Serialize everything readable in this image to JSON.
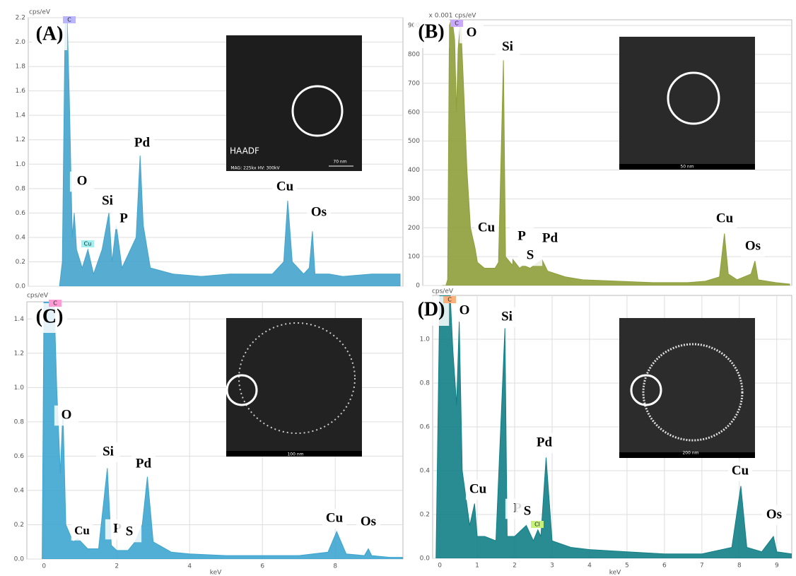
{
  "chart_data": [
    {
      "type": "line",
      "ylabel": "cps/eV",
      "color": "#44a4cc",
      "xlim": [
        -1.1,
        12.1
      ],
      "ylim": [
        0,
        2.2
      ],
      "yticks": [
        {
          "value": 0,
          "label": "0.0"
        },
        {
          "value": 0.2,
          "label": "0.2"
        },
        {
          "value": 0.4,
          "label": "0.4"
        },
        {
          "value": 0.6,
          "label": "0.6"
        },
        {
          "value": 0.8,
          "label": "0.8"
        },
        {
          "value": 1.0,
          "label": "1.0"
        },
        {
          "value": 1.2,
          "label": "1.2"
        },
        {
          "value": 1.4,
          "label": "1.4"
        },
        {
          "value": 1.6,
          "label": "1.6"
        },
        {
          "value": 1.8,
          "label": "1.8"
        },
        {
          "value": 2.0,
          "label": "2.0"
        },
        {
          "value": 2.2,
          "label": "2.2"
        }
      ],
      "x": [
        0,
        0.1,
        0.2,
        0.27,
        0.35,
        0.45,
        0.52,
        0.6,
        0.8,
        1.0,
        1.2,
        1.5,
        1.74,
        1.85,
        2.0,
        2.2,
        2.5,
        2.7,
        2.84,
        2.95,
        3.2,
        4,
        5,
        6,
        7.5,
        7.9,
        8.04,
        8.2,
        8.6,
        8.8,
        8.91,
        9.0,
        9.5,
        10,
        11,
        12
      ],
      "values": [
        0,
        0.2,
        2.2,
        2.2,
        1.5,
        0.4,
        0.6,
        0.3,
        0.15,
        0.3,
        0.1,
        0.3,
        0.6,
        0.2,
        0.5,
        0.15,
        0.3,
        0.4,
        1.07,
        0.5,
        0.15,
        0.1,
        0.08,
        0.1,
        0.1,
        0.2,
        0.7,
        0.2,
        0.1,
        0.15,
        0.45,
        0.1,
        0.1,
        0.08,
        0.1,
        0.1
      ],
      "annotations": [
        "(A)",
        "O",
        "Si",
        "P",
        "Pd",
        "Cu",
        "Os",
        "C",
        "Cu",
        "HAADF",
        "70 nm",
        "MAG: 225kx HV: 300kV"
      ]
    },
    {
      "type": "line",
      "ylabel": "x 0.001 cps/eV",
      "color": "#8f9e3a",
      "xlim": [
        -0.56,
        9.96
      ],
      "ylim": [
        0,
        920
      ],
      "yticks": [
        0,
        100,
        200,
        300,
        400,
        500,
        600,
        700,
        800,
        900
      ],
      "x": [
        0,
        0.1,
        0.15,
        0.2,
        0.25,
        0.28,
        0.35,
        0.4,
        0.45,
        0.52,
        0.6,
        0.7,
        0.8,
        0.93,
        1.0,
        1.2,
        1.5,
        1.6,
        1.74,
        1.8,
        2.0,
        2.01,
        2.2,
        2.31,
        2.5,
        2.84,
        3.0,
        3.5,
        4,
        5,
        6,
        7,
        7.5,
        7.9,
        8.04,
        8.15,
        8.4,
        8.8,
        8.91,
        9.0,
        9.5,
        9.9
      ],
      "values": [
        0,
        0,
        20,
        900,
        920,
        920,
        850,
        600,
        820,
        920,
        700,
        400,
        200,
        130,
        80,
        60,
        60,
        80,
        780,
        100,
        70,
        90,
        60,
        70,
        60,
        90,
        50,
        30,
        20,
        15,
        10,
        10,
        15,
        30,
        180,
        40,
        20,
        40,
        85,
        20,
        10,
        5
      ],
      "annotations": [
        "(B)",
        "O",
        "Si",
        "Cu",
        "P",
        "S",
        "Pd",
        "Cu",
        "Os",
        "C",
        "50 nm"
      ]
    },
    {
      "type": "line",
      "ylabel": "cps/eV",
      "xlabel": "keV",
      "color": "#3ea5cf",
      "xlim": [
        -0.47,
        9.86
      ],
      "ylim": [
        0,
        1.5
      ],
      "yticks": [
        {
          "value": 0,
          "label": "0.0"
        },
        {
          "value": 0.2,
          "label": "0.2"
        },
        {
          "value": 0.4,
          "label": "0.4"
        },
        {
          "value": 0.6,
          "label": "0.6"
        },
        {
          "value": 0.8,
          "label": "0.8"
        },
        {
          "value": 1.0,
          "label": "1.0"
        },
        {
          "value": 1.2,
          "label": "1.2"
        },
        {
          "value": 1.4,
          "label": "1.4"
        }
      ],
      "xticks": [
        0,
        2,
        4,
        6,
        8
      ],
      "x": [
        -0.05,
        0,
        0.1,
        0.2,
        0.28,
        0.35,
        0.45,
        0.52,
        0.6,
        0.8,
        0.93,
        1.2,
        1.5,
        1.74,
        1.85,
        2.0,
        2.31,
        2.5,
        2.7,
        2.84,
        3.0,
        3.5,
        4,
        5,
        6,
        7,
        7.8,
        8.04,
        8.3,
        8.8,
        8.91,
        9.0,
        9.5,
        9.86
      ],
      "values": [
        0,
        1.5,
        1.5,
        1.5,
        1.5,
        1.0,
        0.5,
        0.87,
        0.2,
        0.1,
        0.12,
        0.06,
        0.06,
        0.53,
        0.08,
        0.05,
        0.05,
        0.1,
        0.2,
        0.48,
        0.1,
        0.04,
        0.03,
        0.02,
        0.02,
        0.02,
        0.04,
        0.16,
        0.03,
        0.02,
        0.06,
        0.02,
        0.01,
        0.01
      ],
      "annotations": [
        "(C)",
        "O",
        "Si",
        "Pd",
        "Cu",
        "P",
        "S",
        "Cu",
        "Os",
        "C",
        "100 nm"
      ]
    },
    {
      "type": "line",
      "ylabel": "cps/eV",
      "xlabel": "keV",
      "color": "#127f86",
      "xlim": [
        -0.19,
        9.4
      ],
      "ylim": [
        0,
        1.2
      ],
      "yticks": [
        {
          "value": 0,
          "label": "0.0"
        },
        {
          "value": 0.2,
          "label": "0.2"
        },
        {
          "value": 0.4,
          "label": "0.4"
        },
        {
          "value": 0.6,
          "label": "0.6"
        },
        {
          "value": 0.8,
          "label": "0.8"
        },
        {
          "value": 1.0,
          "label": "1.0"
        }
      ],
      "xticks": [
        0,
        1,
        2,
        3,
        4,
        5,
        6,
        7,
        8,
        9
      ],
      "x": [
        -0.1,
        0,
        0.1,
        0.2,
        0.28,
        0.35,
        0.45,
        0.52,
        0.6,
        0.8,
        0.93,
        1.0,
        1.2,
        1.5,
        1.74,
        1.8,
        2.0,
        2.31,
        2.5,
        2.62,
        2.7,
        2.84,
        3.0,
        3.5,
        4,
        5,
        6,
        7,
        7.8,
        8.04,
        8.2,
        8.6,
        8.91,
        9.0,
        9.4
      ],
      "values": [
        0,
        1.2,
        1.2,
        1.2,
        1.2,
        0.95,
        0.7,
        1.08,
        0.4,
        0.15,
        0.25,
        0.1,
        0.1,
        0.08,
        1.05,
        0.1,
        0.1,
        0.15,
        0.08,
        0.13,
        0.1,
        0.46,
        0.08,
        0.05,
        0.04,
        0.03,
        0.02,
        0.02,
        0.05,
        0.33,
        0.05,
        0.03,
        0.1,
        0.03,
        0.02
      ],
      "annotations": [
        "(D)",
        "O",
        "Si",
        "Cu",
        "P",
        "S",
        "Pd",
        "Cu",
        "Os",
        "C",
        "Cl",
        "200 nm"
      ]
    }
  ]
}
